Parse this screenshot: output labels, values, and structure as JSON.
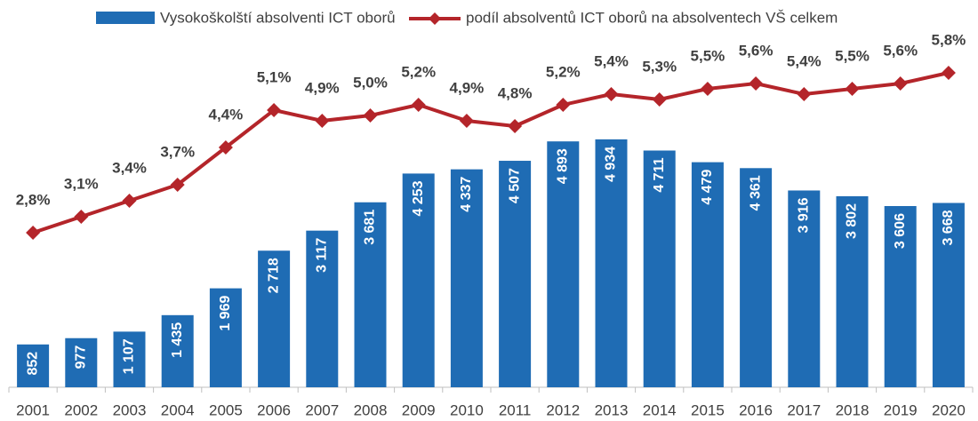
{
  "chart_data": {
    "type": "bar_line",
    "categories": [
      "2001",
      "2002",
      "2003",
      "2004",
      "2005",
      "2006",
      "2007",
      "2008",
      "2009",
      "2010",
      "2011",
      "2012",
      "2013",
      "2014",
      "2015",
      "2016",
      "2017",
      "2018",
      "2019",
      "2020"
    ],
    "series": [
      {
        "name": "Vysokoškolští absolventi ICT oborů",
        "type": "bar",
        "color": "#1f6cb4",
        "values": [
          852,
          977,
          1107,
          1435,
          1969,
          2718,
          3117,
          3681,
          4253,
          4337,
          4507,
          4893,
          4934,
          4711,
          4479,
          4361,
          3916,
          3802,
          3606,
          3668
        ],
        "value_labels": [
          "852",
          "977",
          "1 107",
          "1 435",
          "1 969",
          "2 718",
          "3 117",
          "3 681",
          "4 253",
          "4 337",
          "4 507",
          "4 893",
          "4 934",
          "4 711",
          "4 479",
          "4 361",
          "3 916",
          "3 802",
          "3 606",
          "3 668"
        ]
      },
      {
        "name": "podíl absolventů ICT oborů na absolventech VŠ celkem",
        "type": "line",
        "axis": "y2",
        "color": "#b4252a",
        "values": [
          2.8,
          3.1,
          3.4,
          3.7,
          4.4,
          5.1,
          4.9,
          5.0,
          5.2,
          4.9,
          4.8,
          5.2,
          5.4,
          5.3,
          5.5,
          5.6,
          5.4,
          5.5,
          5.6,
          5.8
        ],
        "value_labels": [
          "2,8%",
          "3,1%",
          "3,4%",
          "3,7%",
          "4,4%",
          "5,1%",
          "4,9%",
          "5,0%",
          "5,2%",
          "4,9%",
          "4,8%",
          "5,2%",
          "5,4%",
          "5,3%",
          "5,5%",
          "5,6%",
          "5,4%",
          "5,5%",
          "5,6%",
          "5,8%"
        ]
      }
    ],
    "ylim": [
      0,
      7000
    ],
    "y2lim": [
      -0.1,
      6.5
    ],
    "legend": "top"
  }
}
